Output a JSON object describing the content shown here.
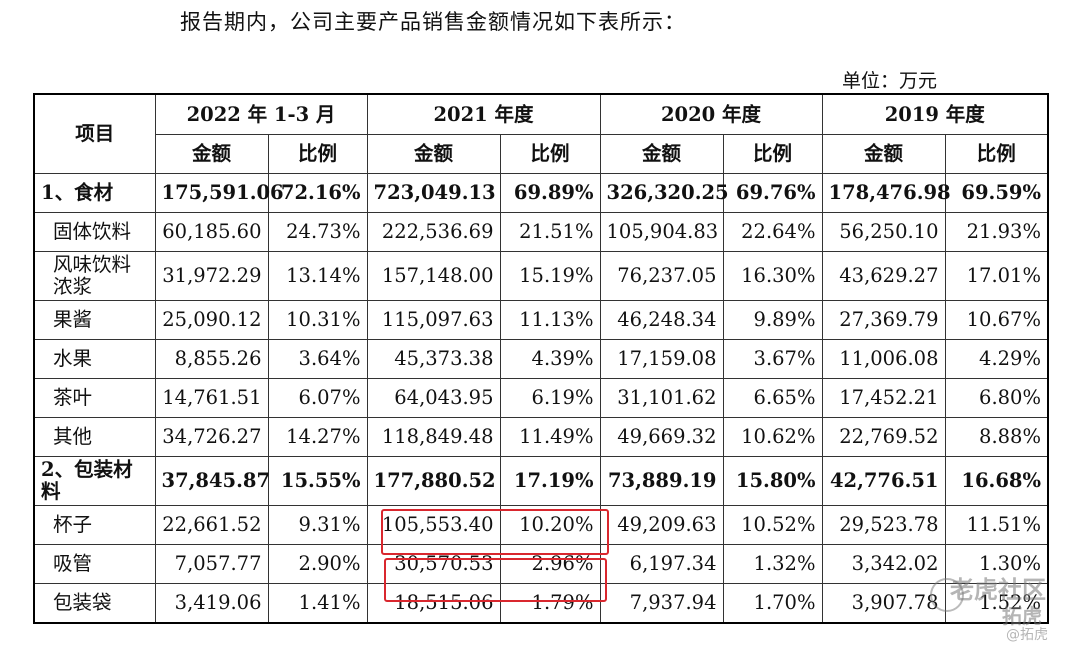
{
  "intro": "报告期内，公司主要产品销售金额情况如下表所示：",
  "unit": "单位：万元",
  "table": {
    "item_header": "项目",
    "periods": [
      "2022 年 1-3 月",
      "2021 年度",
      "2020 年度",
      "2019 年度"
    ],
    "sub_headers": [
      "金额",
      "比例",
      "金额",
      "比例",
      "金额",
      "比例",
      "金额",
      "比例"
    ],
    "rows": [
      {
        "name": "1、食材",
        "bold": true,
        "values": [
          "175,591.06",
          "72.16%",
          "723,049.13",
          "69.89%",
          "326,320.25",
          "69.76%",
          "178,476.98",
          "69.59%"
        ]
      },
      {
        "name": "固体饮料",
        "values": [
          "60,185.60",
          "24.73%",
          "222,536.69",
          "21.51%",
          "105,904.83",
          "22.64%",
          "56,250.10",
          "21.93%"
        ]
      },
      {
        "name": "风味饮料浓浆",
        "tall": true,
        "values": [
          "31,972.29",
          "13.14%",
          "157,148.00",
          "15.19%",
          "76,237.05",
          "16.30%",
          "43,629.27",
          "17.01%"
        ]
      },
      {
        "name": "果酱",
        "values": [
          "25,090.12",
          "10.31%",
          "115,097.63",
          "11.13%",
          "46,248.34",
          "9.89%",
          "27,369.79",
          "10.67%"
        ]
      },
      {
        "name": "水果",
        "values": [
          "8,855.26",
          "3.64%",
          "45,373.38",
          "4.39%",
          "17,159.08",
          "3.67%",
          "11,006.08",
          "4.29%"
        ]
      },
      {
        "name": "茶叶",
        "values": [
          "14,761.51",
          "6.07%",
          "64,043.95",
          "6.19%",
          "31,101.62",
          "6.65%",
          "17,452.21",
          "6.80%"
        ]
      },
      {
        "name": "其他",
        "values": [
          "34,726.27",
          "14.27%",
          "118,849.48",
          "11.49%",
          "49,669.32",
          "10.62%",
          "22,769.52",
          "8.88%"
        ]
      },
      {
        "name": "2、包装材料",
        "bold": true,
        "tall": true,
        "values": [
          "37,845.87",
          "15.55%",
          "177,880.52",
          "17.19%",
          "73,889.19",
          "15.80%",
          "42,776.51",
          "16.68%"
        ]
      },
      {
        "name": "杯子",
        "values": [
          "22,661.52",
          "9.31%",
          "105,553.40",
          "10.20%",
          "49,209.63",
          "10.52%",
          "29,523.78",
          "11.51%"
        ]
      },
      {
        "name": "吸管",
        "values": [
          "7,057.77",
          "2.90%",
          "30,570.53",
          "2.96%",
          "6,197.34",
          "1.32%",
          "3,342.02",
          "1.30%"
        ]
      },
      {
        "name": "包装袋",
        "values": [
          "3,419.06",
          "1.41%",
          "18,515.06",
          "1.79%",
          "7,937.94",
          "1.70%",
          "3,907.78",
          "1.52%"
        ]
      }
    ]
  },
  "highlight_color": "#d9272e",
  "watermark": {
    "brand": "老虎社区",
    "handle": "@拓虎",
    "label": "拓虎"
  }
}
